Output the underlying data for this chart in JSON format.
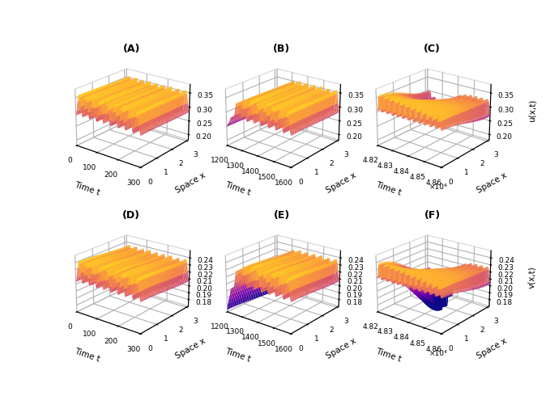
{
  "panels": [
    {
      "label": "(A)",
      "zlabel": "u(x,t)",
      "xlabel": "Space x",
      "ylabel": "Time t",
      "time_range": [
        0,
        300
      ],
      "time_ticks": [
        0,
        100,
        200,
        300
      ],
      "time_tick_labels": [
        "0",
        "100",
        "200",
        "300"
      ],
      "space_ticks": [
        0,
        1,
        2,
        3
      ],
      "zlim": [
        0.18,
        0.38
      ],
      "zticks": [
        0.2,
        0.25,
        0.3,
        0.35
      ],
      "type": "u",
      "pattern": "sustained_oscillation",
      "n_periods": 9,
      "amplitude": 0.075,
      "equilibrium": 0.285
    },
    {
      "label": "(B)",
      "zlabel": "u(x,t)",
      "xlabel": "Space x",
      "ylabel": "Time t",
      "time_range": [
        1200,
        1600
      ],
      "time_ticks": [
        1200,
        1300,
        1400,
        1500,
        1600
      ],
      "time_tick_labels": [
        "1200",
        "1300",
        "1400",
        "1500",
        "1600"
      ],
      "space_ticks": [
        0,
        1,
        2,
        3
      ],
      "zlim": [
        0.18,
        0.38
      ],
      "zticks": [
        0.2,
        0.25,
        0.3,
        0.35
      ],
      "type": "u",
      "pattern": "growing_oscillation",
      "n_periods": 9,
      "amplitude": 0.075,
      "equilibrium": 0.285
    },
    {
      "label": "(C)",
      "zlabel": "u(x,t)",
      "xlabel": "Space x",
      "ylabel": "Time t",
      "time_range": [
        4.82,
        4.86
      ],
      "time_ticks": [
        4.82,
        4.83,
        4.84,
        4.85,
        4.86
      ],
      "time_tick_labels": [
        "4.82",
        "4.83",
        "4.84",
        "4.85",
        "4.86"
      ],
      "time_tick_suffix": "×10⁴",
      "space_ticks": [
        0,
        1,
        2,
        3
      ],
      "zlim": [
        0.18,
        0.38
      ],
      "zticks": [
        0.2,
        0.25,
        0.3,
        0.35
      ],
      "type": "u",
      "pattern": "turing_hopf",
      "n_periods": 12,
      "amplitude": 0.075,
      "equilibrium": 0.285
    },
    {
      "label": "(D)",
      "zlabel": "v(x,t)",
      "xlabel": "Space x",
      "ylabel": "Time t",
      "time_range": [
        0,
        300
      ],
      "time_ticks": [
        0,
        100,
        200,
        300
      ],
      "time_tick_labels": [
        "0",
        "100",
        "200",
        "300"
      ],
      "space_ticks": [
        0,
        1,
        2,
        3
      ],
      "zlim": [
        0.17,
        0.25
      ],
      "zticks": [
        0.18,
        0.19,
        0.2,
        0.21,
        0.22,
        0.23,
        0.24
      ],
      "type": "v",
      "pattern": "sustained_oscillation",
      "n_periods": 9,
      "amplitude": 0.03,
      "equilibrium": 0.21
    },
    {
      "label": "(E)",
      "zlabel": "v(x,t)",
      "xlabel": "Space x",
      "ylabel": "Time t",
      "time_range": [
        1200,
        1600
      ],
      "time_ticks": [
        1200,
        1300,
        1400,
        1500,
        1600
      ],
      "time_tick_labels": [
        "1200",
        "1300",
        "1400",
        "1500",
        "1600"
      ],
      "space_ticks": [
        0,
        1,
        2,
        3
      ],
      "zlim": [
        0.17,
        0.25
      ],
      "zticks": [
        0.18,
        0.19,
        0.2,
        0.21,
        0.22,
        0.23,
        0.24
      ],
      "type": "v",
      "pattern": "growing_oscillation",
      "n_periods": 9,
      "amplitude": 0.03,
      "equilibrium": 0.21
    },
    {
      "label": "(F)",
      "zlabel": "v(x,t)",
      "xlabel": "Space x",
      "ylabel": "Time t",
      "time_range": [
        4.82,
        4.86
      ],
      "time_ticks": [
        4.82,
        4.83,
        4.84,
        4.85,
        4.86
      ],
      "time_tick_labels": [
        "4.82",
        "4.83",
        "4.84",
        "4.85",
        "4.86"
      ],
      "time_tick_suffix": "×10⁴",
      "space_ticks": [
        0,
        1,
        2,
        3
      ],
      "zlim": [
        0.17,
        0.25
      ],
      "zticks": [
        0.18,
        0.19,
        0.2,
        0.21,
        0.22,
        0.23,
        0.24
      ],
      "type": "v",
      "pattern": "turing_hopf",
      "n_periods": 12,
      "amplitude": 0.03,
      "equilibrium": 0.21
    }
  ],
  "colormap": "plasma",
  "background_color": "#ffffff",
  "label_fontsize": 7.5,
  "tick_fontsize": 6.5,
  "title_fontsize": 9,
  "elev": 22,
  "azim": -52
}
